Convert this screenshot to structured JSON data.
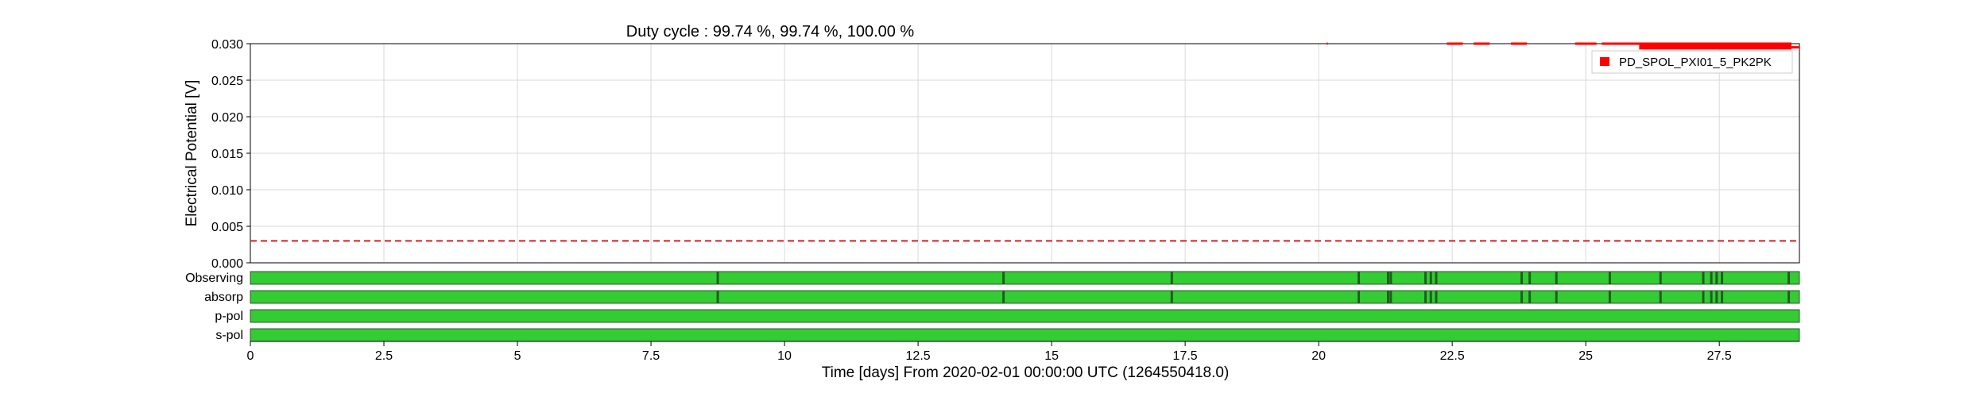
{
  "chart_data": {
    "type": "line",
    "title": "Duty cycle : 99.74 %, 99.74 %, 100.00 %",
    "xlabel": "Time [days] From 2020-02-01 00:00:00 UTC (1264550418.0)",
    "ylabel": "Electrical Potential [V]",
    "xlim": [
      0,
      29
    ],
    "ylim": [
      0,
      0.03
    ],
    "x_ticks": [
      0,
      2.5,
      5,
      7.5,
      10,
      12.5,
      15,
      17.5,
      20,
      22.5,
      25,
      27.5
    ],
    "x_tick_labels": [
      "0",
      "2.5",
      "5",
      "7.5",
      "10",
      "12.5",
      "15",
      "17.5",
      "20",
      "22.5",
      "25",
      "27.5"
    ],
    "y_ticks": [
      0,
      0.005,
      0.01,
      0.015,
      0.02,
      0.025,
      0.03
    ],
    "y_tick_labels": [
      "0.000",
      "0.005",
      "0.010",
      "0.015",
      "0.020",
      "0.025",
      "0.030"
    ],
    "grid": true,
    "legend": {
      "position": "top-right",
      "entries": [
        {
          "name": "PD_SPOL_PXI01_5_PK2PK",
          "color": "#ff0000"
        }
      ]
    },
    "threshold": {
      "y": 0.003,
      "style": "dashed",
      "color": "#e31a1c"
    },
    "series": [
      {
        "name": "PD_SPOL_PXI01_5_PK2PK",
        "color": "#ff0000",
        "segments": [
          {
            "x": [
              20.15,
              20.17
            ],
            "y": [
              0.03,
              0.03
            ]
          },
          {
            "x": [
              22.4,
              22.7
            ],
            "y": [
              0.03,
              0.03
            ]
          },
          {
            "x": [
              22.9,
              23.2
            ],
            "y": [
              0.03,
              0.03
            ]
          },
          {
            "x": [
              23.6,
              23.9
            ],
            "y": [
              0.03,
              0.03
            ]
          },
          {
            "x": [
              24.8,
              25.2
            ],
            "y": [
              0.03,
              0.03
            ]
          },
          {
            "x": [
              25.3,
              26.0
            ],
            "y": [
              0.03,
              0.03
            ]
          },
          {
            "x": [
              26.0,
              28.85
            ],
            "y": [
              0.03,
              0.03
            ]
          },
          {
            "x": [
              28.85,
              29.0
            ],
            "y": [
              0.0295,
              0.0295
            ]
          }
        ],
        "band": {
          "x": [
            26.0,
            28.85
          ],
          "y": [
            0.0292,
            0.03
          ]
        }
      }
    ],
    "state_bars": [
      {
        "label": "Observing",
        "on_color": "#33cc33",
        "off_color": "#1f5f1f",
        "gaps": [
          8.75,
          14.1,
          17.25,
          20.75,
          21.3,
          21.35,
          22.0,
          22.1,
          22.2,
          23.8,
          23.95,
          24.45,
          25.45,
          26.4,
          27.2,
          27.35,
          27.45,
          27.55,
          28.8
        ]
      },
      {
        "label": "absorp",
        "on_color": "#33cc33",
        "off_color": "#1f5f1f",
        "gaps": [
          8.75,
          14.1,
          17.25,
          20.75,
          21.3,
          21.35,
          22.0,
          22.1,
          22.2,
          23.8,
          23.95,
          24.45,
          25.45,
          26.4,
          27.2,
          27.35,
          27.45,
          27.55,
          28.8
        ]
      },
      {
        "label": "p-pol",
        "on_color": "#33cc33",
        "off_color": "#1f5f1f",
        "gaps": []
      },
      {
        "label": "s-pol",
        "on_color": "#33cc33",
        "off_color": "#1f5f1f",
        "gaps": []
      }
    ]
  }
}
